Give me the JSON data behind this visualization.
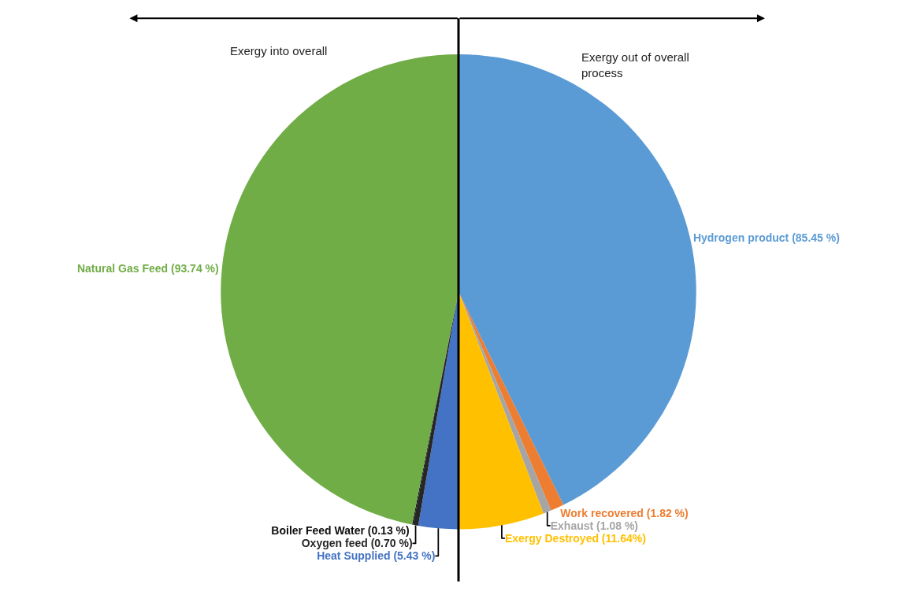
{
  "chart_data": {
    "type": "pie",
    "categories": [
      "Hydrogen product (85.45 %)",
      "Work recovered (1.82 %)",
      "Exhaust (1.08 %)",
      "Exergy Destroyed (11.64%)",
      "Heat Supplied (5.43 %)",
      "Oxygen feed (0.70 %)",
      "Boiler Feed Water (0.13 %)",
      "Natural Gas Feed (93.74 %)"
    ],
    "values": [
      85.45,
      1.82,
      1.08,
      11.64,
      5.43,
      0.7,
      0.13,
      93.74
    ],
    "colors": [
      "#5b9bd5",
      "#ed7d31",
      "#a5a5a5",
      "#ffc000",
      "#4472c4",
      "#262626",
      "#0d0d0d",
      "#70ad47"
    ],
    "annotations": [
      "Exergy into overall",
      "Exergy out of overall\nprocess"
    ],
    "legend": false
  }
}
